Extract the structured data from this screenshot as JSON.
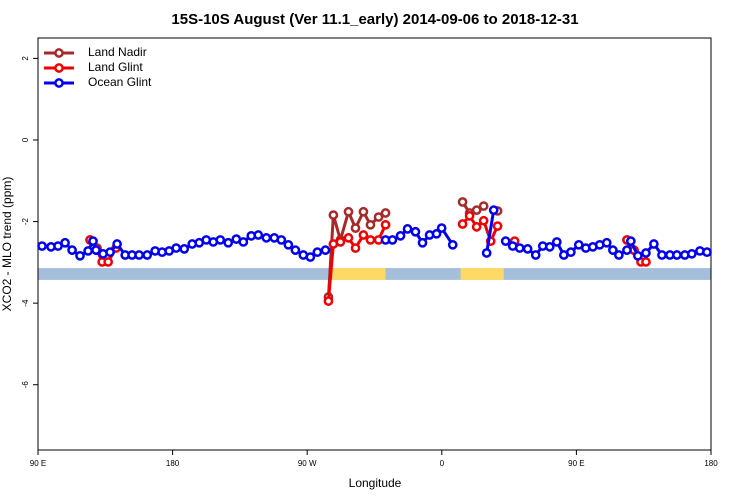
{
  "chart_data": {
    "type": "line",
    "title": "15S-10S August (Ver 11.1_early)   2014-09-06 to 2018-12-31",
    "x_label": "Longitude",
    "y_label": "XCO2 - MLO trend (ppm)",
    "xlim": [
      90,
      540
    ],
    "ylim": [
      -7.6,
      2.5
    ],
    "xticks": [
      {
        "value": 90,
        "label": "90 E"
      },
      180,
      {
        "value": 270,
        "label": "90 W"
      },
      {
        "value": 360,
        "label": "0"
      },
      {
        "value": 450,
        "label": "90 E"
      },
      {
        "value": 540,
        "label": "180"
      }
    ],
    "yticks": [
      2,
      0,
      -2,
      -4,
      -6
    ],
    "legend": "top-left",
    "band": {
      "ylim": [
        -3.43,
        -3.14
      ],
      "color": "#a4bedb",
      "land_color": "#ffd966",
      "land": [
        [
          285.6,
          322.4
        ],
        [
          372.6,
          401.4
        ]
      ]
    },
    "series": [
      {
        "name": "Land Nadir",
        "color": "#a52a2a",
        "x": [
          124.8,
          129.5,
          284.2,
          287.5,
          292.2,
          297.6,
          302.3,
          307.6,
          312.3,
          317.7,
          322.4,
          373.9,
          378.6,
          383.3,
          388.0,
          397.3,
          483.8,
          488.5
        ],
        "values": [
          -2.45,
          -2.65,
          -3.85,
          -1.84,
          -2.45,
          -1.76,
          -2.16,
          -1.76,
          -2.08,
          -1.89,
          -1.79,
          -1.52,
          -1.79,
          -1.72,
          -1.62,
          -1.74,
          -2.45,
          -2.7
        ]
      },
      {
        "name": "Land Glint",
        "color": "#ee0000",
        "x": [
          124.8,
          129.5,
          132.9,
          136.9,
          142.2,
          284.2,
          287.5,
          292.2,
          297.6,
          302.3,
          307.6,
          312.3,
          317.7,
          322.4,
          373.9,
          378.6,
          383.3,
          388.0,
          392.7,
          397.3,
          408.7,
          483.8,
          488.5,
          493.2,
          496.5
        ],
        "values": [
          -2.45,
          -2.7,
          -2.99,
          -2.99,
          -2.65,
          -3.95,
          -2.55,
          -2.5,
          -2.4,
          -2.65,
          -2.33,
          -2.45,
          -2.45,
          -2.08,
          -2.06,
          -1.86,
          -2.13,
          -1.98,
          -2.48,
          -2.11,
          -2.48,
          -2.45,
          -2.7,
          -2.99,
          -2.99
        ]
      },
      {
        "name": "Ocean Glint",
        "color": "#0000ee",
        "x": [
          92.7,
          98.7,
          103.4,
          108.1,
          112.8,
          118.1,
          123.5,
          126.8,
          128.8,
          133.5,
          138.2,
          142.9,
          148.3,
          152.9,
          157.6,
          163.0,
          168.3,
          173.0,
          177.7,
          182.4,
          187.8,
          193.1,
          197.8,
          202.5,
          207.2,
          211.9,
          217.2,
          222.6,
          227.3,
          232.6,
          237.3,
          242.7,
          248.0,
          252.7,
          257.4,
          262.1,
          267.4,
          272.1,
          276.8,
          282.2,
          322.4,
          327.0,
          332.4,
          337.1,
          342.4,
          347.1,
          351.8,
          356.5,
          359.9,
          367.3,
          390.0,
          394.7,
          402.7,
          407.4,
          412.1,
          417.4,
          422.8,
          427.5,
          432.2,
          436.9,
          441.6,
          446.3,
          451.6,
          456.3,
          461.0,
          465.6,
          470.3,
          474.4,
          478.4,
          483.8,
          486.4,
          491.1,
          496.5,
          501.8,
          507.2,
          512.5,
          517.2,
          522.5,
          527.2,
          532.6,
          537.3
        ],
        "values": [
          -2.6,
          -2.62,
          -2.6,
          -2.52,
          -2.7,
          -2.84,
          -2.72,
          -2.48,
          -2.7,
          -2.79,
          -2.75,
          -2.55,
          -2.82,
          -2.82,
          -2.82,
          -2.82,
          -2.72,
          -2.75,
          -2.72,
          -2.65,
          -2.67,
          -2.55,
          -2.52,
          -2.45,
          -2.5,
          -2.45,
          -2.52,
          -2.43,
          -2.5,
          -2.35,
          -2.33,
          -2.4,
          -2.4,
          -2.45,
          -2.57,
          -2.7,
          -2.82,
          -2.87,
          -2.75,
          -2.7,
          -2.45,
          -2.45,
          -2.35,
          -2.18,
          -2.25,
          -2.52,
          -2.33,
          -2.3,
          -2.16,
          -2.57,
          -2.77,
          -1.72,
          -2.48,
          -2.6,
          -2.65,
          -2.67,
          -2.82,
          -2.6,
          -2.62,
          -2.5,
          -2.82,
          -2.75,
          -2.57,
          -2.65,
          -2.62,
          -2.57,
          -2.52,
          -2.7,
          -2.82,
          -2.7,
          -2.48,
          -2.84,
          -2.77,
          -2.55,
          -2.82,
          -2.82,
          -2.82,
          -2.82,
          -2.79,
          -2.72,
          -2.75
        ]
      }
    ]
  }
}
